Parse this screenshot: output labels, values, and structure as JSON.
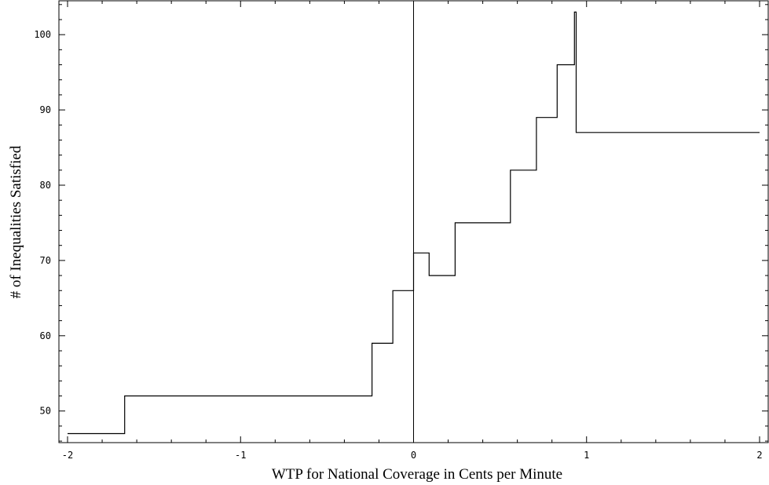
{
  "chart_data": {
    "type": "line",
    "title": "",
    "xlabel": "WTP for National Coverage in Cents per Minute",
    "ylabel": "# of Inequalities Satisfied",
    "xlim": [
      -2.05,
      2.05
    ],
    "ylim": [
      45.8,
      104.5
    ],
    "x_ticks": [
      -2,
      -1,
      0,
      1,
      2
    ],
    "x_tick_labels": [
      "-2",
      "-1",
      "0",
      "1",
      "2"
    ],
    "y_ticks": [
      50,
      60,
      70,
      80,
      90,
      100
    ],
    "y_tick_labels": [
      "50",
      "60",
      "70",
      "80",
      "90",
      "100"
    ],
    "grid": false,
    "legend": "none",
    "reference_lines": [
      {
        "axis": "x",
        "value": 0
      }
    ],
    "series": [
      {
        "step": true,
        "x": [
          -2.0,
          -1.67,
          -1.67,
          -0.24,
          -0.24,
          -0.12,
          -0.12,
          0.0,
          0.0,
          0.09,
          0.09,
          0.24,
          0.24,
          0.56,
          0.56,
          0.71,
          0.71,
          0.83,
          0.83,
          0.93,
          0.93,
          0.94,
          0.94,
          2.0
        ],
        "y": [
          47,
          47,
          52,
          52,
          59,
          59,
          66,
          66,
          71,
          71,
          68,
          68,
          75,
          75,
          82,
          82,
          89,
          89,
          96,
          96,
          103,
          103,
          87,
          87
        ]
      }
    ]
  }
}
